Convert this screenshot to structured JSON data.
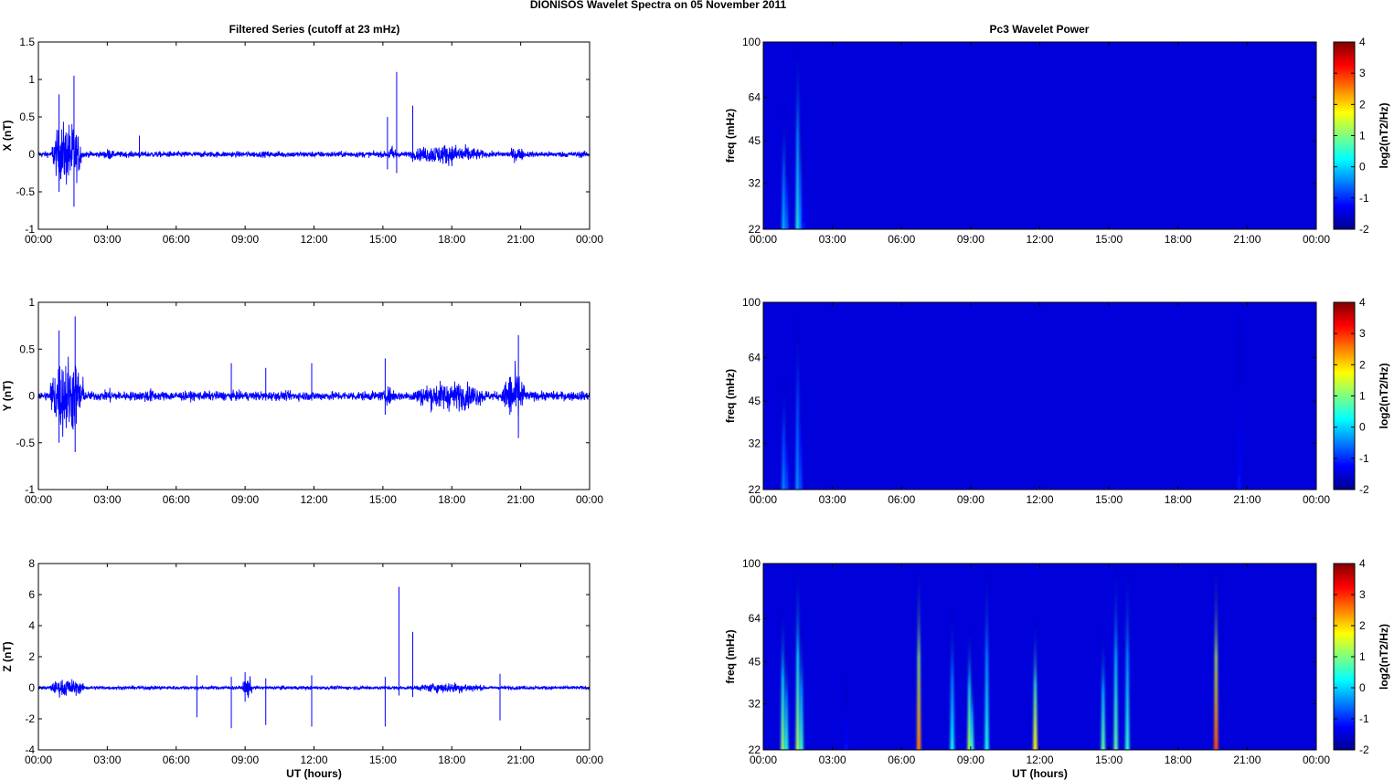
{
  "figure": {
    "suptitle": "DIONISOS Wavelet Spectra on 05 November  2011"
  },
  "chart_data": [
    {
      "type": "line",
      "panel": "X",
      "title": "Filtered Series (cutoff at 23 mHz)",
      "xlabel": "",
      "ylabel": "X (nT)",
      "xlim": [
        0,
        24
      ],
      "ylim": [
        -1,
        1.5
      ],
      "xticks": [
        "00:00",
        "03:00",
        "06:00",
        "09:00",
        "12:00",
        "15:00",
        "18:00",
        "21:00",
        "00:00"
      ],
      "yticks": [
        "-1",
        "-0.5",
        "0",
        "0.5",
        "1",
        "1.5"
      ],
      "ytick_values": [
        -1,
        -0.5,
        0,
        0.5,
        1,
        1.5
      ],
      "color": "#0000ff",
      "baseline_amplitude": 0.04,
      "bursts": [
        [
          0.6,
          1.9,
          0.45
        ],
        [
          2.8,
          3.3,
          0.08
        ],
        [
          15.2,
          15.6,
          0.12
        ],
        [
          16.2,
          19.4,
          0.14
        ],
        [
          20.5,
          21.2,
          0.1
        ]
      ],
      "spikes": [
        [
          0.9,
          0.8,
          -0.5
        ],
        [
          1.55,
          1.05,
          -0.7
        ],
        [
          4.4,
          0.25,
          -0.05
        ],
        [
          15.2,
          0.5,
          -0.2
        ],
        [
          15.6,
          1.1,
          -0.25
        ],
        [
          16.3,
          0.65,
          -0.1
        ]
      ]
    },
    {
      "type": "line",
      "panel": "Y",
      "title": "",
      "xlabel": "",
      "ylabel": "Y (nT)",
      "xlim": [
        0,
        24
      ],
      "ylim": [
        -1,
        1
      ],
      "xticks": [
        "00:00",
        "03:00",
        "06:00",
        "09:00",
        "12:00",
        "15:00",
        "18:00",
        "21:00",
        "00:00"
      ],
      "yticks": [
        "-1",
        "-0.5",
        "0",
        "0.5",
        "1"
      ],
      "ytick_values": [
        -1,
        -0.5,
        0,
        0.5,
        1
      ],
      "color": "#0000ff",
      "baseline_amplitude": 0.05,
      "bursts": [
        [
          0.5,
          2.0,
          0.45
        ],
        [
          2.8,
          3.4,
          0.08
        ],
        [
          4.4,
          5.2,
          0.08
        ],
        [
          15.0,
          15.6,
          0.1
        ],
        [
          16.2,
          19.6,
          0.16
        ],
        [
          20.2,
          21.2,
          0.3
        ]
      ],
      "spikes": [
        [
          0.9,
          0.7,
          -0.5
        ],
        [
          1.6,
          0.85,
          -0.6
        ],
        [
          8.4,
          0.35,
          -0.05
        ],
        [
          9.9,
          0.3,
          -0.05
        ],
        [
          11.9,
          0.35,
          -0.05
        ],
        [
          15.1,
          0.4,
          -0.2
        ],
        [
          20.9,
          0.65,
          -0.45
        ]
      ]
    },
    {
      "type": "line",
      "panel": "Z",
      "title": "",
      "xlabel": "UT (hours)",
      "ylabel": "Z (nT)",
      "xlim": [
        0,
        24
      ],
      "ylim": [
        -4,
        8
      ],
      "xticks": [
        "00:00",
        "03:00",
        "06:00",
        "09:00",
        "12:00",
        "15:00",
        "18:00",
        "21:00",
        "00:00"
      ],
      "yticks": [
        "-4",
        "-2",
        "0",
        "2",
        "4",
        "6",
        "8"
      ],
      "ytick_values": [
        -4,
        -2,
        0,
        2,
        4,
        6,
        8
      ],
      "color": "#0000ff",
      "baseline_amplitude": 0.12,
      "bursts": [
        [
          0.5,
          2.0,
          0.6
        ],
        [
          8.9,
          9.3,
          0.8
        ],
        [
          16.3,
          19.5,
          0.35
        ]
      ],
      "spikes": [
        [
          6.9,
          0.8,
          -1.9
        ],
        [
          8.4,
          0.7,
          -2.6
        ],
        [
          9.0,
          1.0,
          -0.9
        ],
        [
          9.9,
          0.6,
          -2.4
        ],
        [
          11.9,
          0.8,
          -2.5
        ],
        [
          15.1,
          0.7,
          -2.5
        ],
        [
          15.7,
          6.5,
          -0.5
        ],
        [
          16.3,
          3.6,
          -0.6
        ],
        [
          20.1,
          0.9,
          -2.1
        ]
      ]
    },
    {
      "type": "heatmap",
      "panel": "X",
      "title": "Pc3 Wavelet Power",
      "xlabel": "",
      "ylabel": "freq (mHz)",
      "xlim": [
        0,
        24
      ],
      "ylim": [
        22,
        100
      ],
      "xticks": [
        "00:00",
        "03:00",
        "06:00",
        "09:00",
        "12:00",
        "15:00",
        "18:00",
        "21:00",
        "00:00"
      ],
      "yticks": [
        "22",
        "32",
        "45",
        "64",
        "100"
      ],
      "ytick_values": [
        22,
        32,
        45,
        64,
        100
      ],
      "colorbar": {
        "label": "log2(nT2/Hz)",
        "min": -2,
        "max": 4,
        "ticks": [
          "4",
          "3",
          "2",
          "1",
          "0",
          "-1",
          "-2"
        ]
      },
      "background_value": -2,
      "plumes": [
        [
          0.9,
          0.0,
          58
        ],
        [
          1.0,
          -0.6,
          40
        ],
        [
          1.5,
          0.5,
          100
        ],
        [
          1.6,
          -0.3,
          55
        ],
        [
          1.75,
          -1.2,
          45
        ]
      ]
    },
    {
      "type": "heatmap",
      "panel": "Y",
      "title": "",
      "xlabel": "",
      "ylabel": "freq (mHz)",
      "xlim": [
        0,
        24
      ],
      "ylim": [
        22,
        100
      ],
      "xticks": [
        "00:00",
        "03:00",
        "06:00",
        "09:00",
        "12:00",
        "15:00",
        "18:00",
        "21:00",
        "00:00"
      ],
      "yticks": [
        "22",
        "32",
        "45",
        "64",
        "100"
      ],
      "ytick_values": [
        22,
        32,
        45,
        64,
        100
      ],
      "colorbar": {
        "label": "log2(nT2/Hz)",
        "min": -2,
        "max": 4,
        "ticks": [
          "4",
          "3",
          "2",
          "1",
          "0",
          "-1",
          "-2"
        ]
      },
      "background_value": -2,
      "plumes": [
        [
          0.9,
          -0.3,
          55
        ],
        [
          1.0,
          -0.8,
          40
        ],
        [
          1.5,
          -0.2,
          90
        ],
        [
          1.6,
          -0.8,
          50
        ],
        [
          20.65,
          -1.2,
          90
        ]
      ]
    },
    {
      "type": "heatmap",
      "panel": "Z",
      "title": "",
      "xlabel": "UT (hours)",
      "ylabel": "freq (mHz)",
      "xlim": [
        0,
        24
      ],
      "ylim": [
        22,
        100
      ],
      "xticks": [
        "00:00",
        "03:00",
        "06:00",
        "09:00",
        "12:00",
        "15:00",
        "18:00",
        "21:00",
        "00:00"
      ],
      "yticks": [
        "22",
        "32",
        "45",
        "64",
        "100"
      ],
      "ytick_values": [
        22,
        32,
        45,
        64,
        100
      ],
      "colorbar": {
        "label": "log2(nT2/Hz)",
        "min": -2,
        "max": 4,
        "ticks": [
          "4",
          "3",
          "2",
          "1",
          "0",
          "-1",
          "-2"
        ]
      },
      "background_value": -2,
      "plumes": [
        [
          0.85,
          1.2,
          70
        ],
        [
          1.0,
          0.5,
          50
        ],
        [
          1.5,
          1.3,
          100
        ],
        [
          1.65,
          0.6,
          60
        ],
        [
          3.6,
          -1.2,
          40
        ],
        [
          6.75,
          2.5,
          100
        ],
        [
          8.2,
          0.3,
          70
        ],
        [
          8.95,
          1.4,
          60
        ],
        [
          9.05,
          0.6,
          40
        ],
        [
          9.7,
          0.4,
          100
        ],
        [
          11.8,
          1.8,
          64
        ],
        [
          14.75,
          0.8,
          58
        ],
        [
          15.3,
          0.8,
          100
        ],
        [
          15.8,
          0.5,
          100
        ],
        [
          19.65,
          2.8,
          100
        ]
      ]
    }
  ]
}
